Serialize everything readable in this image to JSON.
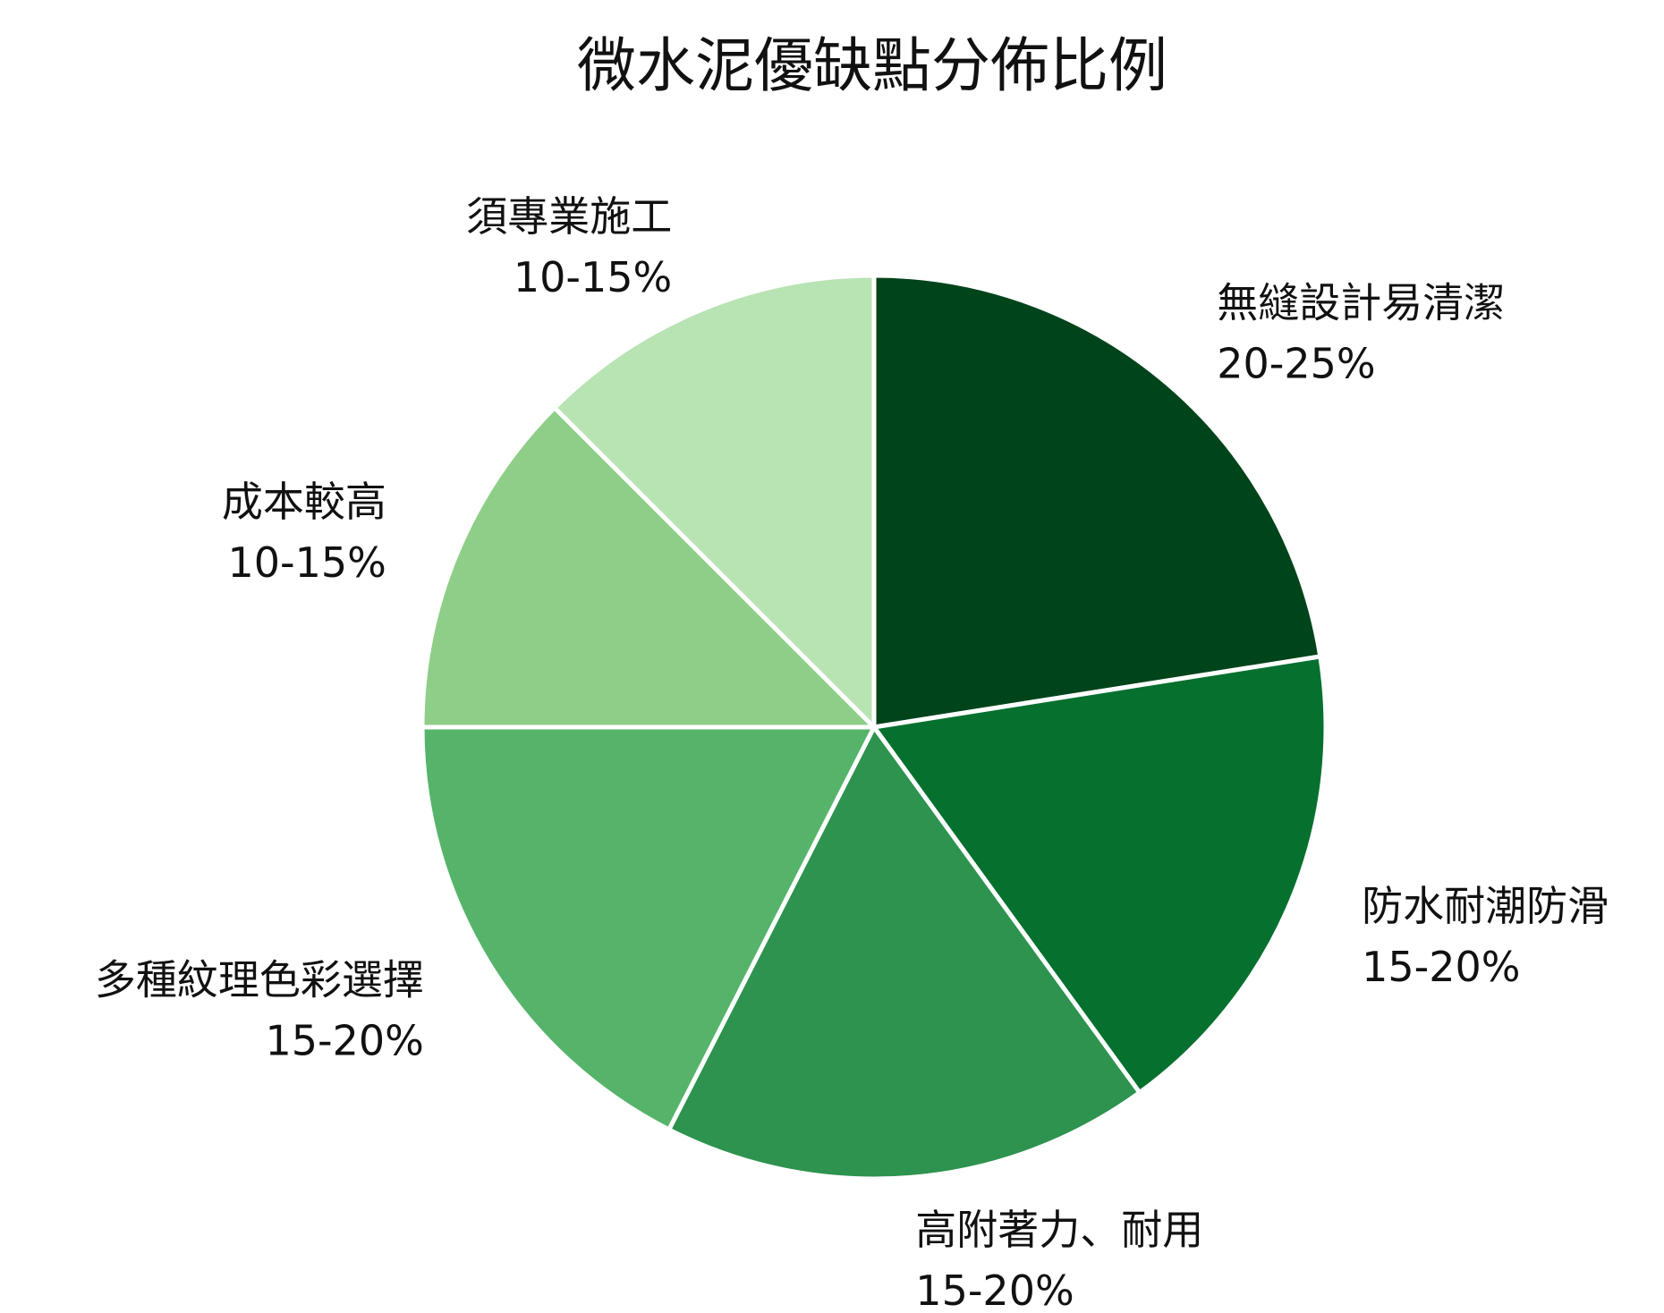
{
  "chart_data": {
    "type": "pie",
    "title": "微水泥優缺點分佈比例",
    "start_angle_deg": 0,
    "direction": "clockwise",
    "legend": "none",
    "slices": [
      {
        "label": "無縫設計易清潔",
        "value_text": "20-25%",
        "value": 22.5,
        "color": "#00441b"
      },
      {
        "label": "防水耐潮防滑",
        "value_text": "15-20%",
        "value": 17.5,
        "color": "#06702f"
      },
      {
        "label": "高附著力、耐用",
        "value_text": "15-20%",
        "value": 17.5,
        "color": "#2d934e"
      },
      {
        "label": "多種紋理色彩選擇",
        "value_text": "15-20%",
        "value": 17.5,
        "color": "#56b46a"
      },
      {
        "label": "成本較高",
        "value_text": "10-15%",
        "value": 12.5,
        "color": "#8ece88"
      },
      {
        "label": "須專業施工",
        "value_text": "10-15%",
        "value": 12.5,
        "color": "#b8e3b3"
      }
    ]
  }
}
